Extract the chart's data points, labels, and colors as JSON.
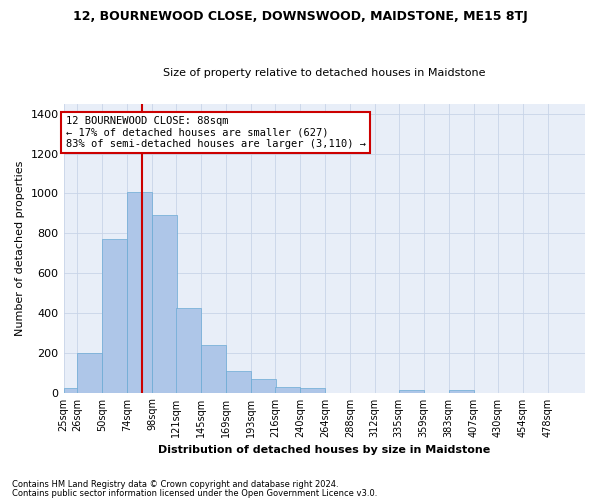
{
  "title": "12, BOURNEWOOD CLOSE, DOWNSWOOD, MAIDSTONE, ME15 8TJ",
  "subtitle": "Size of property relative to detached houses in Maidstone",
  "xlabel": "Distribution of detached houses by size in Maidstone",
  "ylabel": "Number of detached properties",
  "footnote1": "Contains HM Land Registry data © Crown copyright and database right 2024.",
  "footnote2": "Contains public sector information licensed under the Open Government Licence v3.0.",
  "annotation_line1": "12 BOURNEWOOD CLOSE: 88sqm",
  "annotation_line2": "← 17% of detached houses are smaller (627)",
  "annotation_line3": "83% of semi-detached houses are larger (3,110) →",
  "property_size": 88,
  "bar_color": "#aec6e8",
  "bar_edge_color": "#6aaad4",
  "red_line_color": "#cc0000",
  "annotation_box_color": "#cc0000",
  "grid_color": "#c8d4e8",
  "background_color": "#e8eef8",
  "categories": [
    "25sqm",
    "26sqm",
    "50sqm",
    "74sqm",
    "98sqm",
    "121sqm",
    "145sqm",
    "169sqm",
    "193sqm",
    "216sqm",
    "240sqm",
    "264sqm",
    "288sqm",
    "312sqm",
    "335sqm",
    "359sqm",
    "383sqm",
    "407sqm",
    "430sqm",
    "454sqm",
    "478sqm"
  ],
  "bin_centers": [
    25,
    38,
    62,
    86,
    110,
    133,
    157,
    181,
    205,
    228,
    252,
    276,
    300,
    324,
    347,
    371,
    395,
    419,
    442,
    466,
    490
  ],
  "bin_width": 24,
  "values": [
    22,
    200,
    770,
    1005,
    890,
    425,
    237,
    110,
    70,
    30,
    22,
    0,
    0,
    0,
    11,
    0,
    15,
    0,
    0,
    0,
    0
  ],
  "xlim": [
    13,
    514
  ],
  "ylim": [
    0,
    1450
  ],
  "yticks": [
    0,
    200,
    400,
    600,
    800,
    1000,
    1200,
    1400
  ]
}
